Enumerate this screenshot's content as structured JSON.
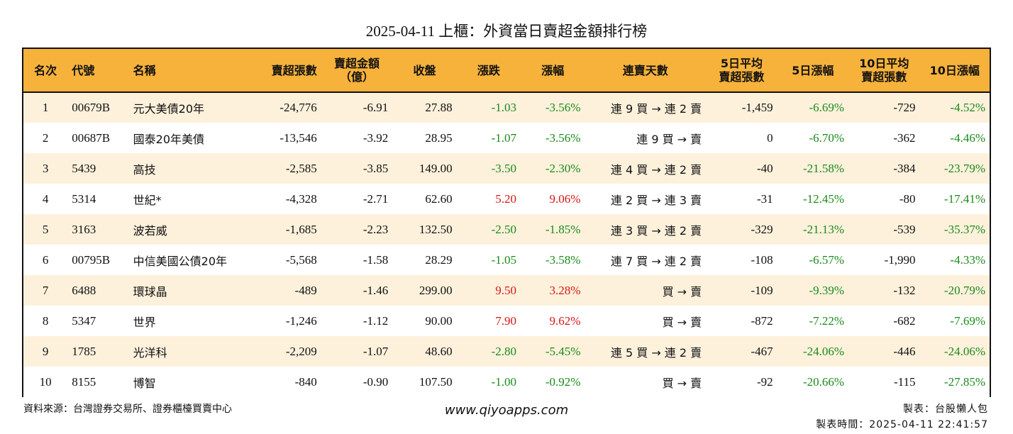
{
  "title": "2025-04-11 上櫃：外資當日賣超金額排行榜",
  "headers": {
    "rank": "名次",
    "code": "代號",
    "name": "名稱",
    "sell_shares": "賣超張數",
    "sell_amount_1": "賣超金額",
    "sell_amount_2": "（億）",
    "close": "收盤",
    "change": "漲跌",
    "pct": "漲幅",
    "streak": "連賣天數",
    "avg5_1": "5日平均",
    "avg5_2": "賣超張數",
    "pct5": "5日漲幅",
    "avg10_1": "10日平均",
    "avg10_2": "賣超張數",
    "pct10": "10日漲幅"
  },
  "rows": [
    {
      "rank": "1",
      "code": "00679B",
      "name": "元大美債20年",
      "sell_shares": "-24,776",
      "sell_amount": "-6.91",
      "close": "27.88",
      "change": "-1.03",
      "pct": "-3.56%",
      "streak": "連 9 買 → 連 2 賣",
      "avg5": "-1,459",
      "pct5": "-6.69%",
      "avg10": "-729",
      "pct10": "-4.52%"
    },
    {
      "rank": "2",
      "code": "00687B",
      "name": "國泰20年美債",
      "sell_shares": "-13,546",
      "sell_amount": "-3.92",
      "close": "28.95",
      "change": "-1.07",
      "pct": "-3.56%",
      "streak": "連 9 買 → 賣",
      "avg5": "0",
      "pct5": "-6.70%",
      "avg10": "-362",
      "pct10": "-4.46%"
    },
    {
      "rank": "3",
      "code": "5439",
      "name": "高技",
      "sell_shares": "-2,585",
      "sell_amount": "-3.85",
      "close": "149.00",
      "change": "-3.50",
      "pct": "-2.30%",
      "streak": "連 4 買 → 連 2 賣",
      "avg5": "-40",
      "pct5": "-21.58%",
      "avg10": "-384",
      "pct10": "-23.79%"
    },
    {
      "rank": "4",
      "code": "5314",
      "name": "世紀*",
      "sell_shares": "-4,328",
      "sell_amount": "-2.71",
      "close": "62.60",
      "change": "5.20",
      "pct": "9.06%",
      "streak": "連 2 買 → 連 3 賣",
      "avg5": "-31",
      "pct5": "-12.45%",
      "avg10": "-80",
      "pct10": "-17.41%"
    },
    {
      "rank": "5",
      "code": "3163",
      "name": "波若威",
      "sell_shares": "-1,685",
      "sell_amount": "-2.23",
      "close": "132.50",
      "change": "-2.50",
      "pct": "-1.85%",
      "streak": "連 3 買 → 連 2 賣",
      "avg5": "-329",
      "pct5": "-21.13%",
      "avg10": "-539",
      "pct10": "-35.37%"
    },
    {
      "rank": "6",
      "code": "00795B",
      "name": "中信美國公債20年",
      "sell_shares": "-5,568",
      "sell_amount": "-1.58",
      "close": "28.29",
      "change": "-1.05",
      "pct": "-3.58%",
      "streak": "連 7 買 → 連 2 賣",
      "avg5": "-108",
      "pct5": "-6.57%",
      "avg10": "-1,990",
      "pct10": "-4.33%"
    },
    {
      "rank": "7",
      "code": "6488",
      "name": "環球晶",
      "sell_shares": "-489",
      "sell_amount": "-1.46",
      "close": "299.00",
      "change": "9.50",
      "pct": "3.28%",
      "streak": "買 → 賣",
      "avg5": "-109",
      "pct5": "-9.39%",
      "avg10": "-132",
      "pct10": "-20.79%"
    },
    {
      "rank": "8",
      "code": "5347",
      "name": "世界",
      "sell_shares": "-1,246",
      "sell_amount": "-1.12",
      "close": "90.00",
      "change": "7.90",
      "pct": "9.62%",
      "streak": "買 → 賣",
      "avg5": "-872",
      "pct5": "-7.22%",
      "avg10": "-682",
      "pct10": "-7.69%"
    },
    {
      "rank": "9",
      "code": "1785",
      "name": "光洋科",
      "sell_shares": "-2,209",
      "sell_amount": "-1.07",
      "close": "48.60",
      "change": "-2.80",
      "pct": "-5.45%",
      "streak": "連 5 買 → 連 2 賣",
      "avg5": "-467",
      "pct5": "-24.06%",
      "avg10": "-446",
      "pct10": "-24.06%"
    },
    {
      "rank": "10",
      "code": "8155",
      "name": "博智",
      "sell_shares": "-840",
      "sell_amount": "-0.90",
      "close": "107.50",
      "change": "-1.00",
      "pct": "-0.92%",
      "streak": "買 → 賣",
      "avg5": "-92",
      "pct5": "-20.66%",
      "avg10": "-115",
      "pct10": "-27.85%"
    }
  ],
  "footer": {
    "source": "資料來源：台灣證券交易所、證券櫃檯買賣中心",
    "website": "www.qiyoapps.com",
    "maker": "製表：台股懶人包",
    "time": "製表時間：2025-04-11 22:41:57"
  },
  "colors": {
    "header_bg": "#f7b23b",
    "row_alt_bg": "#fdf1dc",
    "negative": "#1a8a1a",
    "positive": "#d91414"
  }
}
